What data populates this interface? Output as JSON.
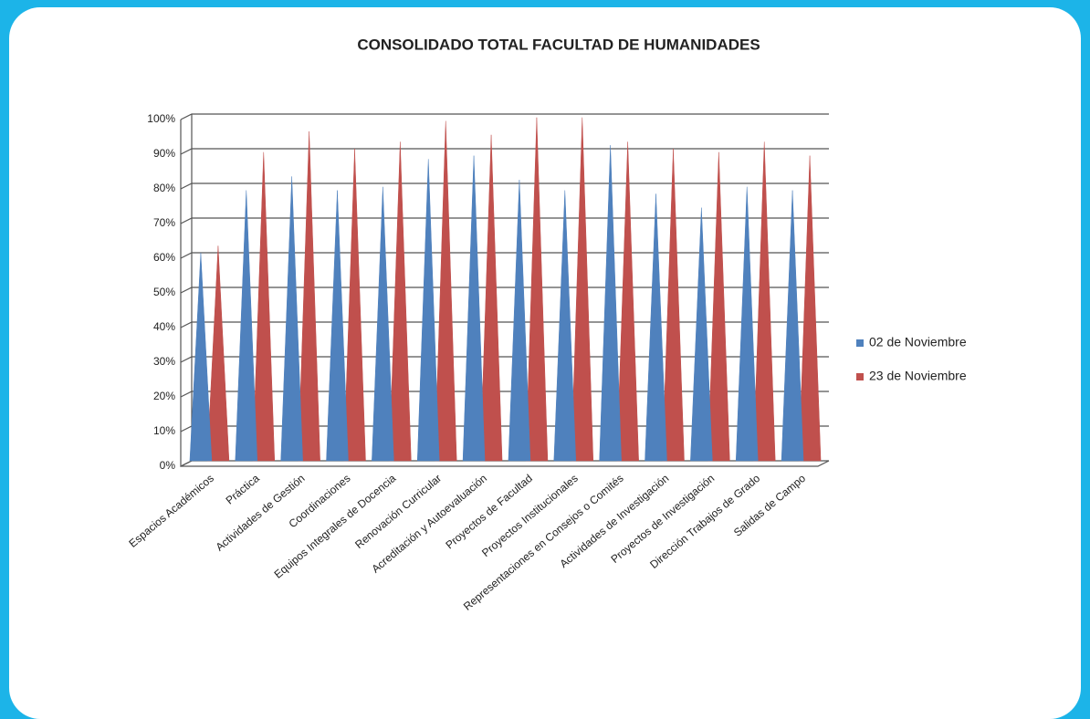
{
  "chart_data": {
    "type": "cone",
    "title": "CONSOLIDADO TOTAL FACULTAD DE HUMANIDADES",
    "categories": [
      "Espacios Académicos",
      "Práctica",
      "Actividades de Gestión",
      "Coordinaciones",
      "Equipos Integrales de Docencia",
      "Renovación Curricular",
      "Acreditación y Autoevaluación",
      "Proyectos de Facultad",
      "Proyectos Institucionales",
      "Representaciones en Consejos o Comités",
      "Actividades de Investigación",
      "Proyectos de Investigación",
      "Dirección Trabajos de Grado",
      "Salidas de Campo"
    ],
    "series": [
      {
        "name": "02 de Noviembre",
        "color": "#4f81bd",
        "values": [
          60,
          78,
          82,
          78,
          79,
          87,
          88,
          81,
          78,
          91,
          77,
          73,
          79,
          78
        ]
      },
      {
        "name": "23 de Noviembre",
        "color": "#c0504d",
        "values": [
          62,
          89,
          95,
          90,
          92,
          98,
          94,
          99,
          99,
          92,
          90,
          89,
          92,
          88
        ]
      }
    ],
    "ylim": [
      0,
      100
    ],
    "yticks": [
      {
        "value": 0,
        "label": "0%"
      },
      {
        "value": 10,
        "label": "10%"
      },
      {
        "value": 20,
        "label": "20%"
      },
      {
        "value": 30,
        "label": "30%"
      },
      {
        "value": 40,
        "label": "40%"
      },
      {
        "value": 50,
        "label": "50%"
      },
      {
        "value": 60,
        "label": "60%"
      },
      {
        "value": 70,
        "label": "70%"
      },
      {
        "value": 80,
        "label": "80%"
      },
      {
        "value": 90,
        "label": "90%"
      },
      {
        "value": 100,
        "label": "100%"
      }
    ],
    "grid": true,
    "legend": "right"
  }
}
